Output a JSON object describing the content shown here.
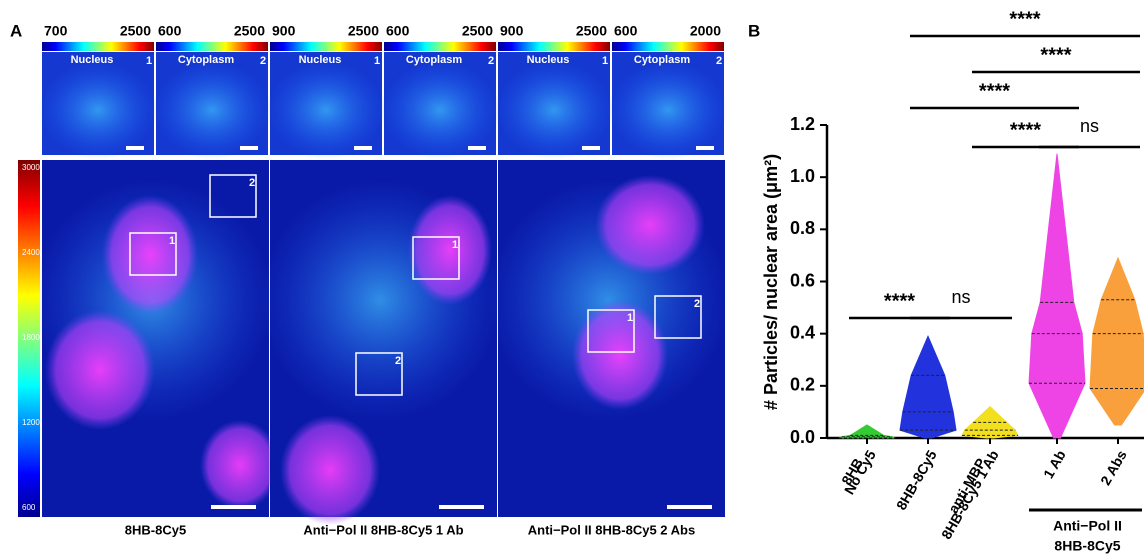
{
  "panel_a": {
    "label": "A",
    "columns": [
      {
        "caption": "8HB-8Cy5",
        "insets": [
          {
            "min": 700,
            "max": 2500,
            "title": "Nucleus",
            "number": "1"
          },
          {
            "min": 600,
            "max": 2500,
            "title": "Cytoplasm",
            "number": "2"
          }
        ]
      },
      {
        "caption": "Anti−Pol II 8HB-8Cy5 1 Ab",
        "insets": [
          {
            "min": 900,
            "max": 2500,
            "title": "Nucleus",
            "number": "1"
          },
          {
            "min": 600,
            "max": 2500,
            "title": "Cytoplasm",
            "number": "2"
          }
        ]
      },
      {
        "caption": "Anti−Pol II 8HB-8Cy5 2 Abs",
        "insets": [
          {
            "min": 900,
            "max": 2500,
            "title": "Nucleus",
            "number": "1"
          },
          {
            "min": 600,
            "max": 2000,
            "title": "Cytoplasm",
            "number": "2"
          }
        ]
      }
    ],
    "colorbar_ticks": [
      3000,
      2400,
      1800,
      1200,
      600
    ]
  },
  "chart_data": {
    "type": "violin",
    "panel_label": "B",
    "y_label": "# Particles/ nuclear area (μm²)",
    "categories": [
      [
        "8HB",
        "No Cy5"
      ],
      [
        "8HB-8Cy5"
      ],
      [
        "anti-MBP",
        "8HB-8Cy5 1 Ab"
      ],
      [
        "1 Ab"
      ],
      [
        "2 Abs"
      ]
    ],
    "series": [
      {
        "color": "#33cc33",
        "min": 0,
        "q1": 0,
        "median": 0.005,
        "q3": 0.01,
        "max": 0.05
      },
      {
        "color": "#2233dd",
        "min": 0,
        "q1": 0.03,
        "median": 0.1,
        "q3": 0.24,
        "max": 0.39
      },
      {
        "color": "#f2e020",
        "min": 0,
        "q1": 0.01,
        "median": 0.03,
        "q3": 0.06,
        "max": 0.12
      },
      {
        "color": "#ee44e6",
        "min": 0,
        "q1": 0.21,
        "median": 0.4,
        "q3": 0.52,
        "max": 1.09
      },
      {
        "color": "#f9a03c",
        "min": 0.05,
        "q1": 0.19,
        "median": 0.4,
        "q3": 0.53,
        "max": 0.69
      }
    ],
    "ylim": [
      0,
      1.2
    ],
    "yticks": [
      {
        "value": 0,
        "label": "0.0"
      },
      0.2,
      0.4,
      0.6,
      0.8,
      {
        "value": 1,
        "label": "1.0"
      },
      1.2
    ],
    "comparisons": [
      {
        "from": 0,
        "to": 1,
        "label": "****"
      },
      {
        "from": 1,
        "to": 2,
        "label": "ns"
      },
      {
        "from": 2,
        "to": 3,
        "label": "****"
      },
      {
        "from": 3,
        "to": 4,
        "label": "ns"
      },
      {
        "from": 1,
        "to": 3,
        "label": "****"
      },
      {
        "from": 2,
        "to": 4,
        "label": "****"
      },
      {
        "from": 1,
        "to": 4,
        "label": "****"
      }
    ],
    "group": {
      "lines": [
        "Anti−Pol II",
        "8HB-8Cy5"
      ],
      "from": 3,
      "to": 4
    }
  }
}
